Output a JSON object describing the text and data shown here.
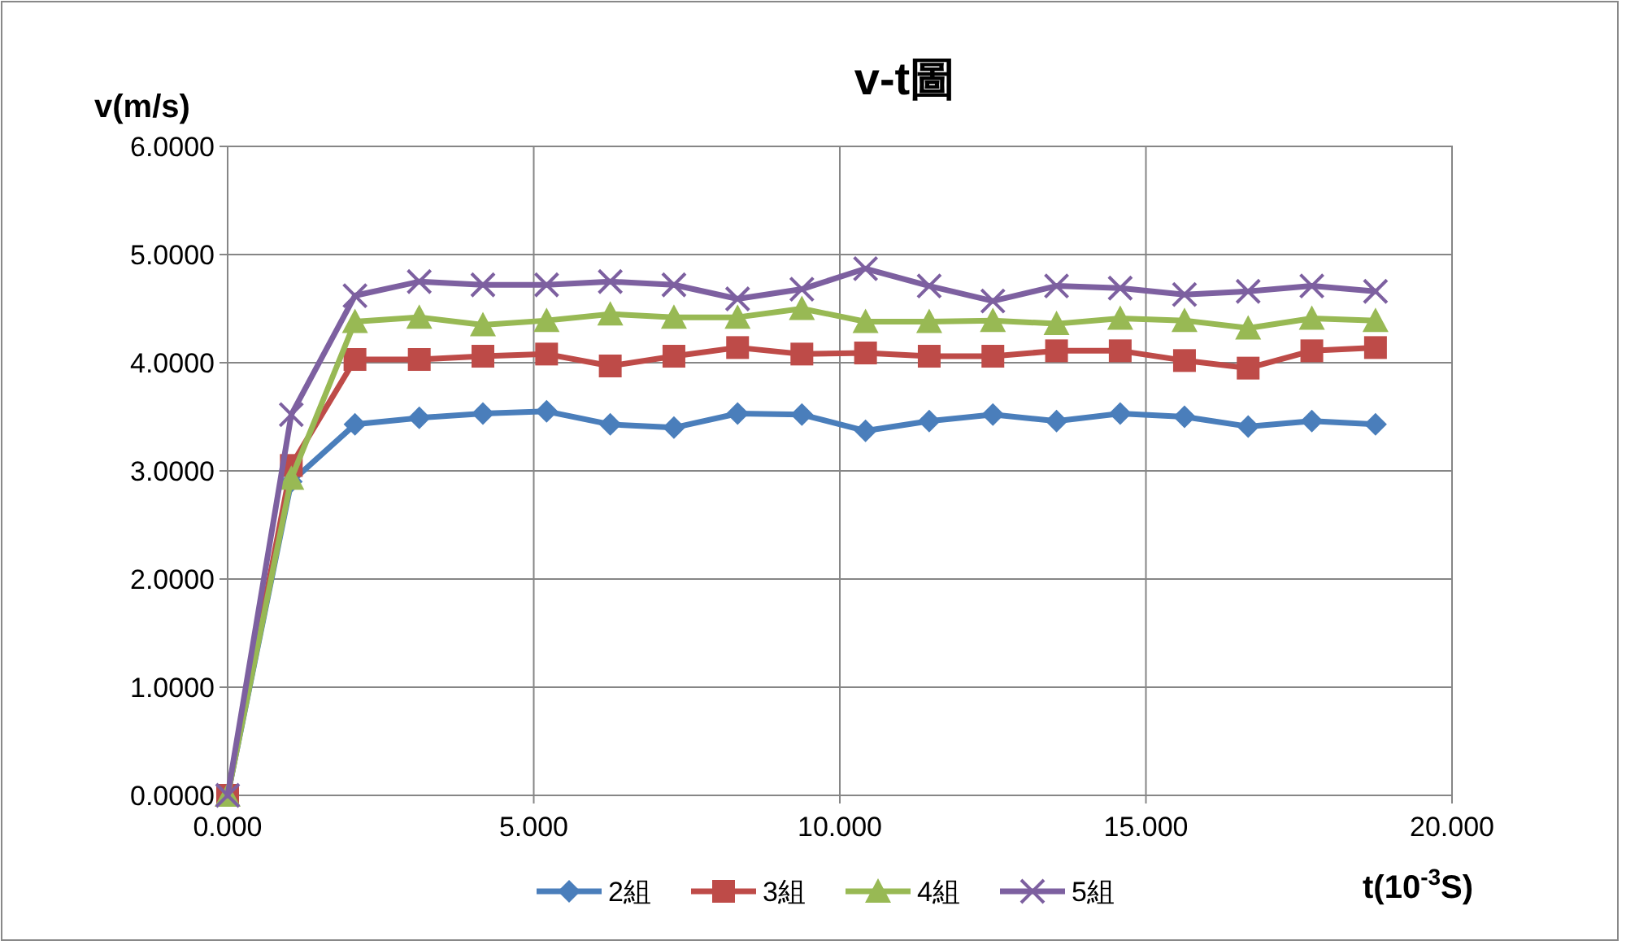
{
  "chart_data": {
    "type": "line",
    "title": "v-t圖",
    "xlabel": "t(10$^{-3}$S)",
    "ylabel": "v(m/s)",
    "x": [
      0,
      1.04,
      2.08,
      3.13,
      4.17,
      5.21,
      6.25,
      7.29,
      8.33,
      9.38,
      10.42,
      11.46,
      12.5,
      13.54,
      14.58,
      15.63,
      16.67,
      17.71,
      18.75
    ],
    "series": [
      {
        "name": "2組",
        "color": "#4a7ebb",
        "marker": "diamond",
        "values": [
          0,
          2.9,
          3.43,
          3.49,
          3.53,
          3.55,
          3.43,
          3.4,
          3.53,
          3.52,
          3.37,
          3.46,
          3.52,
          3.46,
          3.53,
          3.5,
          3.41,
          3.46,
          3.43
        ]
      },
      {
        "name": "3組",
        "color": "#be4b48",
        "marker": "square",
        "values": [
          0,
          3.05,
          4.03,
          4.03,
          4.06,
          4.08,
          3.97,
          4.06,
          4.14,
          4.08,
          4.09,
          4.06,
          4.06,
          4.11,
          4.11,
          4.02,
          3.95,
          4.11,
          4.14
        ]
      },
      {
        "name": "4組",
        "color": "#98b954",
        "marker": "triangle",
        "values": [
          0,
          2.93,
          4.38,
          4.42,
          4.35,
          4.39,
          4.45,
          4.42,
          4.42,
          4.5,
          4.38,
          4.38,
          4.39,
          4.36,
          4.41,
          4.39,
          4.32,
          4.41,
          4.39
        ]
      },
      {
        "name": "5組",
        "color": "#7d60a0",
        "marker": "cross",
        "values": [
          0,
          3.52,
          4.62,
          4.75,
          4.72,
          4.72,
          4.75,
          4.72,
          4.59,
          4.68,
          4.87,
          4.71,
          4.57,
          4.71,
          4.69,
          4.63,
          4.66,
          4.71,
          4.66
        ]
      }
    ],
    "xlim": [
      0,
      20
    ],
    "ylim": [
      0,
      6
    ],
    "xticks": [
      {
        "value": 0,
        "label": "0.000"
      },
      {
        "value": 5,
        "label": "5.000"
      },
      {
        "value": 10,
        "label": "10.000"
      },
      {
        "value": 15,
        "label": "15.000"
      },
      {
        "value": 20,
        "label": "20.000"
      }
    ],
    "yticks": [
      {
        "value": 0,
        "label": "0.0000"
      },
      {
        "value": 1,
        "label": "1.0000"
      },
      {
        "value": 2,
        "label": "2.0000"
      },
      {
        "value": 3,
        "label": "3.0000"
      },
      {
        "value": 4,
        "label": "4.0000"
      },
      {
        "value": 5,
        "label": "5.0000"
      },
      {
        "value": 6,
        "label": "6.0000"
      }
    ],
    "grid": true,
    "legend": "bottom",
    "line_style": "solid"
  }
}
